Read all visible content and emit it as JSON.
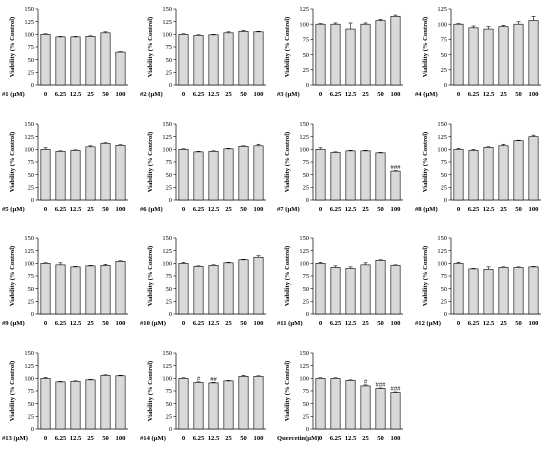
{
  "chart_data": [
    {
      "type": "bar",
      "xlabel": "#1 (µM)",
      "ylabel": "Viability (% Control)",
      "categories": [
        "0",
        "6.25",
        "12.5",
        "25",
        "50",
        "100"
      ],
      "values": [
        100,
        95,
        95,
        96,
        103,
        65
      ],
      "errors": [
        1,
        1,
        1,
        1,
        2,
        1
      ],
      "annotations": [
        "",
        "",
        "",
        "",
        "",
        ""
      ],
      "ylim": [
        0,
        150
      ],
      "yticks": [
        "0",
        "25",
        "50",
        "75",
        "100",
        "125",
        "150"
      ]
    },
    {
      "type": "bar",
      "xlabel": "#2 (µM)",
      "ylabel": "Viability (% Control)",
      "categories": [
        "0",
        "6.25",
        "12.5",
        "25",
        "50",
        "100"
      ],
      "values": [
        100,
        98,
        99,
        103,
        106,
        105
      ],
      "errors": [
        1,
        1,
        1,
        2,
        2,
        1
      ],
      "annotations": [
        "",
        "",
        "",
        "",
        "",
        ""
      ],
      "ylim": [
        0,
        150
      ],
      "yticks": [
        "0",
        "25",
        "50",
        "75",
        "100",
        "125",
        "150"
      ]
    },
    {
      "type": "bar",
      "xlabel": "#3 (µM)",
      "ylabel": "Viability (% Control)",
      "categories": [
        "0",
        "6.25",
        "12.5",
        "25",
        "50",
        "100"
      ],
      "values": [
        100,
        100,
        92,
        100,
        106,
        113
      ],
      "errors": [
        1,
        2,
        10,
        2,
        2,
        2
      ],
      "annotations": [
        "",
        "",
        "",
        "",
        "",
        ""
      ],
      "ylim": [
        0,
        125
      ],
      "yticks": [
        "0",
        "25",
        "50",
        "75",
        "100",
        "125"
      ]
    },
    {
      "type": "bar",
      "xlabel": "#4 (µM)",
      "ylabel": "Viability (% Control)",
      "categories": [
        "0",
        "6.25",
        "12.5",
        "25",
        "50",
        "100"
      ],
      "values": [
        100,
        94,
        92,
        96,
        100,
        106
      ],
      "errors": [
        1,
        3,
        4,
        2,
        4,
        7
      ],
      "annotations": [
        "",
        "",
        "",
        "",
        "",
        ""
      ],
      "ylim": [
        0,
        125
      ],
      "yticks": [
        "0",
        "25",
        "50",
        "75",
        "100",
        "125"
      ]
    },
    {
      "type": "bar",
      "xlabel": "#5 (µM)",
      "ylabel": "Viability (% Control)",
      "categories": [
        "0",
        "6.25",
        "12.5",
        "25",
        "50",
        "100"
      ],
      "values": [
        100,
        96,
        98,
        105,
        112,
        108
      ],
      "errors": [
        3,
        1,
        1,
        2,
        1,
        1
      ],
      "annotations": [
        "",
        "",
        "",
        "",
        "",
        ""
      ],
      "ylim": [
        0,
        150
      ],
      "yticks": [
        "0",
        "25",
        "50",
        "75",
        "100",
        "125",
        "150"
      ]
    },
    {
      "type": "bar",
      "xlabel": "#6 (µM)",
      "ylabel": "Viability (% Control)",
      "categories": [
        "0",
        "6.25",
        "12.5",
        "25",
        "50",
        "100"
      ],
      "values": [
        100,
        95,
        96,
        101,
        106,
        107
      ],
      "errors": [
        1,
        1,
        1,
        1,
        1,
        3
      ],
      "annotations": [
        "",
        "",
        "",
        "",
        "",
        ""
      ],
      "ylim": [
        0,
        150
      ],
      "yticks": [
        "0",
        "25",
        "50",
        "75",
        "100",
        "125",
        "150"
      ]
    },
    {
      "type": "bar",
      "xlabel": "#7 (µM)",
      "ylabel": "Viability (% Control)",
      "categories": [
        "0",
        "6.25",
        "12.5",
        "25",
        "50",
        "100"
      ],
      "values": [
        100,
        94,
        97,
        97,
        93,
        57
      ],
      "errors": [
        3,
        1,
        1,
        1,
        1,
        1
      ],
      "annotations": [
        "",
        "",
        "",
        "",
        "",
        "###"
      ],
      "ylim": [
        0,
        150
      ],
      "yticks": [
        "0",
        "25",
        "50",
        "75",
        "100",
        "125",
        "150"
      ]
    },
    {
      "type": "bar",
      "xlabel": "#8 (µM)",
      "ylabel": "Viability (% Control)",
      "categories": [
        "0",
        "6.25",
        "12.5",
        "25",
        "50",
        "100"
      ],
      "values": [
        100,
        98,
        104,
        107,
        117,
        125
      ],
      "errors": [
        2,
        2,
        1,
        3,
        1,
        3
      ],
      "annotations": [
        "",
        "",
        "",
        "",
        "",
        ""
      ],
      "ylim": [
        0,
        150
      ],
      "yticks": [
        "0",
        "25",
        "50",
        "75",
        "100",
        "125",
        "150"
      ]
    },
    {
      "type": "bar",
      "xlabel": "#9 (µM)",
      "ylabel": "Viability (% Control)",
      "categories": [
        "0",
        "6.25",
        "12.5",
        "25",
        "50",
        "100"
      ],
      "values": [
        100,
        97,
        93,
        95,
        96,
        104
      ],
      "errors": [
        1,
        4,
        1,
        1,
        2,
        1
      ],
      "annotations": [
        "",
        "",
        "",
        "",
        "",
        ""
      ],
      "ylim": [
        0,
        150
      ],
      "yticks": [
        "0",
        "25",
        "50",
        "75",
        "100",
        "125",
        "150"
      ]
    },
    {
      "type": "bar",
      "xlabel": "#10 (µM)",
      "ylabel": "Viability (% Control)",
      "categories": [
        "0",
        "6.25",
        "12.5",
        "25",
        "50",
        "100"
      ],
      "values": [
        100,
        94,
        96,
        101,
        107,
        112
      ],
      "errors": [
        2,
        1,
        1,
        1,
        1,
        3
      ],
      "annotations": [
        "",
        "",
        "",
        "",
        "",
        ""
      ],
      "ylim": [
        0,
        150
      ],
      "yticks": [
        "0",
        "25",
        "50",
        "75",
        "100",
        "125",
        "150"
      ]
    },
    {
      "type": "bar",
      "xlabel": "#11 (µM)",
      "ylabel": "Viability (% Control)",
      "categories": [
        "0",
        "6.25",
        "12.5",
        "25",
        "50",
        "100"
      ],
      "values": [
        100,
        92,
        90,
        97,
        106,
        96
      ],
      "errors": [
        2,
        3,
        3,
        4,
        1,
        1
      ],
      "annotations": [
        "",
        "",
        "",
        "",
        "",
        ""
      ],
      "ylim": [
        0,
        150
      ],
      "yticks": [
        "0",
        "25",
        "50",
        "75",
        "100",
        "125",
        "150"
      ]
    },
    {
      "type": "bar",
      "xlabel": "#12 (µM)",
      "ylabel": "Viability (% Control)",
      "categories": [
        "0",
        "6.25",
        "12.5",
        "25",
        "50",
        "100"
      ],
      "values": [
        100,
        89,
        88,
        92,
        92,
        93
      ],
      "errors": [
        2,
        1,
        5,
        1,
        1,
        1
      ],
      "annotations": [
        "",
        "",
        "",
        "",
        "",
        ""
      ],
      "ylim": [
        0,
        150
      ],
      "yticks": [
        "0",
        "25",
        "50",
        "75",
        "100",
        "125",
        "150"
      ]
    },
    {
      "type": "bar",
      "xlabel": "#13 (µM)",
      "ylabel": "Viability (% Control)",
      "categories": [
        "0",
        "6.25",
        "12.5",
        "25",
        "50",
        "100"
      ],
      "values": [
        100,
        93,
        94,
        97,
        106,
        105
      ],
      "errors": [
        2,
        1,
        1,
        1,
        1,
        1
      ],
      "annotations": [
        "",
        "",
        "",
        "",
        "",
        ""
      ],
      "ylim": [
        0,
        150
      ],
      "yticks": [
        "0",
        "25",
        "50",
        "75",
        "100",
        "125",
        "150"
      ]
    },
    {
      "type": "bar",
      "xlabel": "#14 (µM)",
      "ylabel": "Viability (% Control)",
      "categories": [
        "0",
        "6.25",
        "12.5",
        "25",
        "50",
        "100"
      ],
      "values": [
        100,
        92,
        91,
        95,
        104,
        104
      ],
      "errors": [
        1,
        1,
        1,
        1,
        2,
        1
      ],
      "annotations": [
        "",
        "#",
        "##",
        "",
        "",
        ""
      ],
      "ylim": [
        0,
        150
      ],
      "yticks": [
        "0",
        "25",
        "50",
        "75",
        "100",
        "125",
        "150"
      ]
    },
    {
      "type": "bar",
      "xlabel": "Quercetin(µM)",
      "ylabel": "Viability (% Control)",
      "categories": [
        "0",
        "6.25",
        "12.5",
        "25",
        "50",
        "100"
      ],
      "values": [
        100,
        100,
        96,
        85,
        80,
        72
      ],
      "errors": [
        1,
        1,
        1,
        2,
        1,
        1
      ],
      "annotations": [
        "",
        "",
        "",
        "#",
        "###",
        "###"
      ],
      "ylim": [
        0,
        150
      ],
      "yticks": [
        "0",
        "25",
        "50",
        "75",
        "100",
        "125",
        "150"
      ]
    }
  ]
}
